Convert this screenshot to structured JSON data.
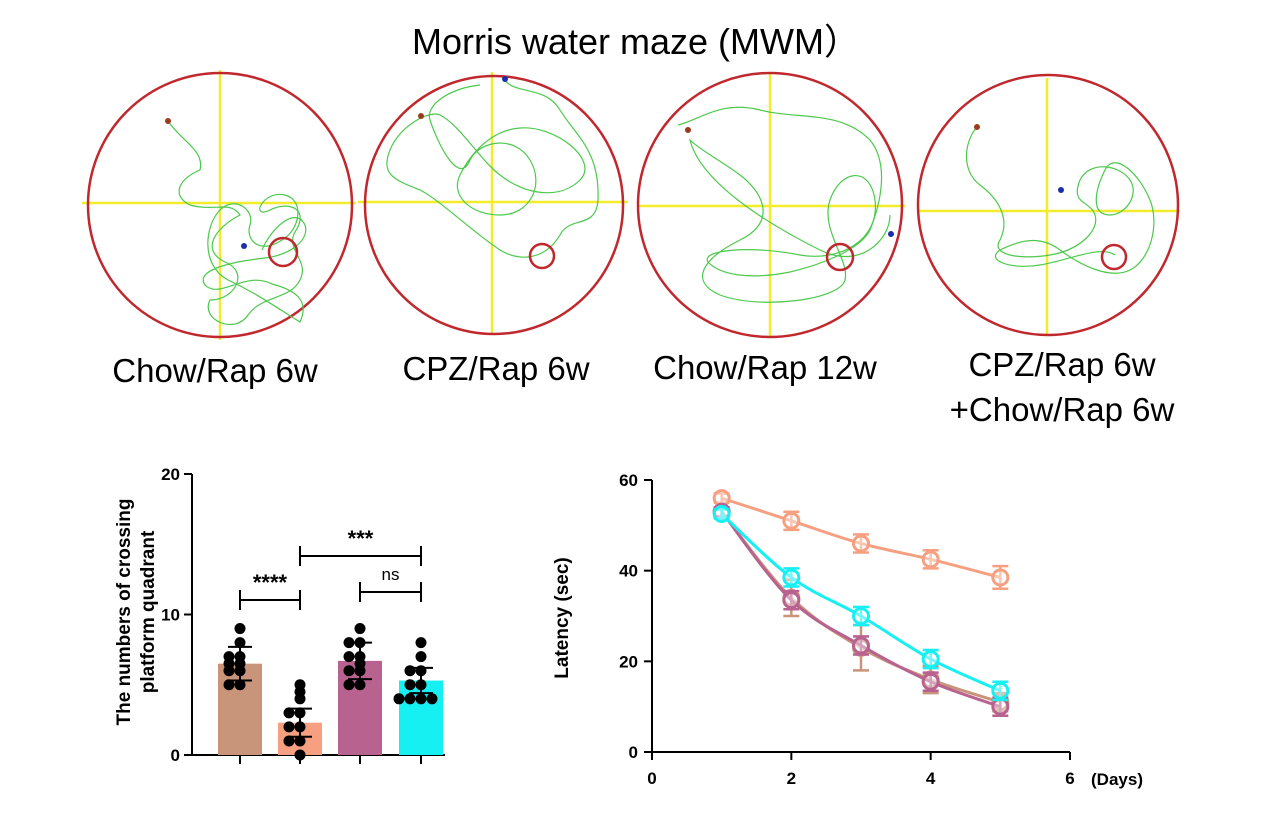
{
  "title": "Morris water maze (MWM）",
  "panels": [
    {
      "label": "Chow/Rap 6w",
      "label2": ""
    },
    {
      "label": "CPZ/Rap 6w",
      "label2": ""
    },
    {
      "label": "Chow/Rap 12w",
      "label2": ""
    },
    {
      "label": "CPZ/Rap 6w",
      "label2": "+Chow/Rap 6w"
    }
  ],
  "colors": {
    "pool": "#c0282d",
    "cross": "#f2ec2a",
    "path": "#4cc94c",
    "chow6w": "#c8957a",
    "cpz6w": "#f6a081",
    "chow12w": "#b86290",
    "cpzchow": "#16f0f3",
    "start_dot": "#1a2fa8",
    "end_dot": "#9b3b1b"
  },
  "chart_data": [
    {
      "type": "bar",
      "ylabel": "The numbers of crossing\nplatform quadrant",
      "ylim": [
        0,
        20
      ],
      "yticks": [
        0,
        10,
        20
      ],
      "categories": [
        "Chow/Rap 6w",
        "CPZ/Rap 6w",
        "Chow/Rap 12w",
        "CPZ/Rap 6w+Chow/Rap 6w"
      ],
      "values": [
        6.5,
        2.3,
        6.7,
        5.3
      ],
      "errors": [
        1.2,
        1.0,
        1.3,
        0.9
      ],
      "points": [
        [
          9,
          8,
          7,
          7,
          6.5,
          6.5,
          6,
          6,
          5,
          5
        ],
        [
          5,
          4.5,
          4,
          3,
          3,
          2,
          2,
          1,
          1,
          0
        ],
        [
          9,
          8,
          8,
          7,
          7,
          6.5,
          6,
          6,
          5,
          5
        ],
        [
          8,
          7,
          6,
          6,
          5,
          5,
          4,
          4,
          4,
          4
        ]
      ],
      "comparisons": [
        {
          "from": 0,
          "to": 1,
          "label": "****"
        },
        {
          "from": 1,
          "to": 3,
          "label": "***"
        },
        {
          "from": 2,
          "to": 3,
          "label": "ns"
        }
      ]
    },
    {
      "type": "line",
      "xlabel": "(Days)",
      "ylabel": "Latency (sec)",
      "xlim": [
        0,
        6
      ],
      "ylim": [
        0,
        60
      ],
      "xticks": [
        0,
        2,
        4,
        6
      ],
      "yticks": [
        0,
        20,
        40,
        60
      ],
      "x": [
        1,
        2,
        3,
        4,
        5
      ],
      "series": [
        {
          "name": "Chow/Rap 6w",
          "values": [
            53,
            34,
            23,
            16,
            11
          ],
          "errors": [
            1,
            4,
            5,
            3,
            2
          ]
        },
        {
          "name": "CPZ/Rap 6w",
          "values": [
            56,
            51,
            46,
            42.5,
            38.5
          ],
          "errors": [
            1,
            2,
            2,
            2,
            2.5
          ]
        },
        {
          "name": "Chow/Rap 12w",
          "values": [
            53,
            33.5,
            23.5,
            15.5,
            10
          ],
          "errors": [
            1,
            2,
            2,
            2,
            2
          ]
        },
        {
          "name": "CPZ/Rap 6w+Chow/Rap 6w",
          "values": [
            52.5,
            38.5,
            30,
            20.5,
            13.5
          ],
          "errors": [
            1,
            2,
            2,
            2,
            2
          ]
        }
      ]
    }
  ]
}
